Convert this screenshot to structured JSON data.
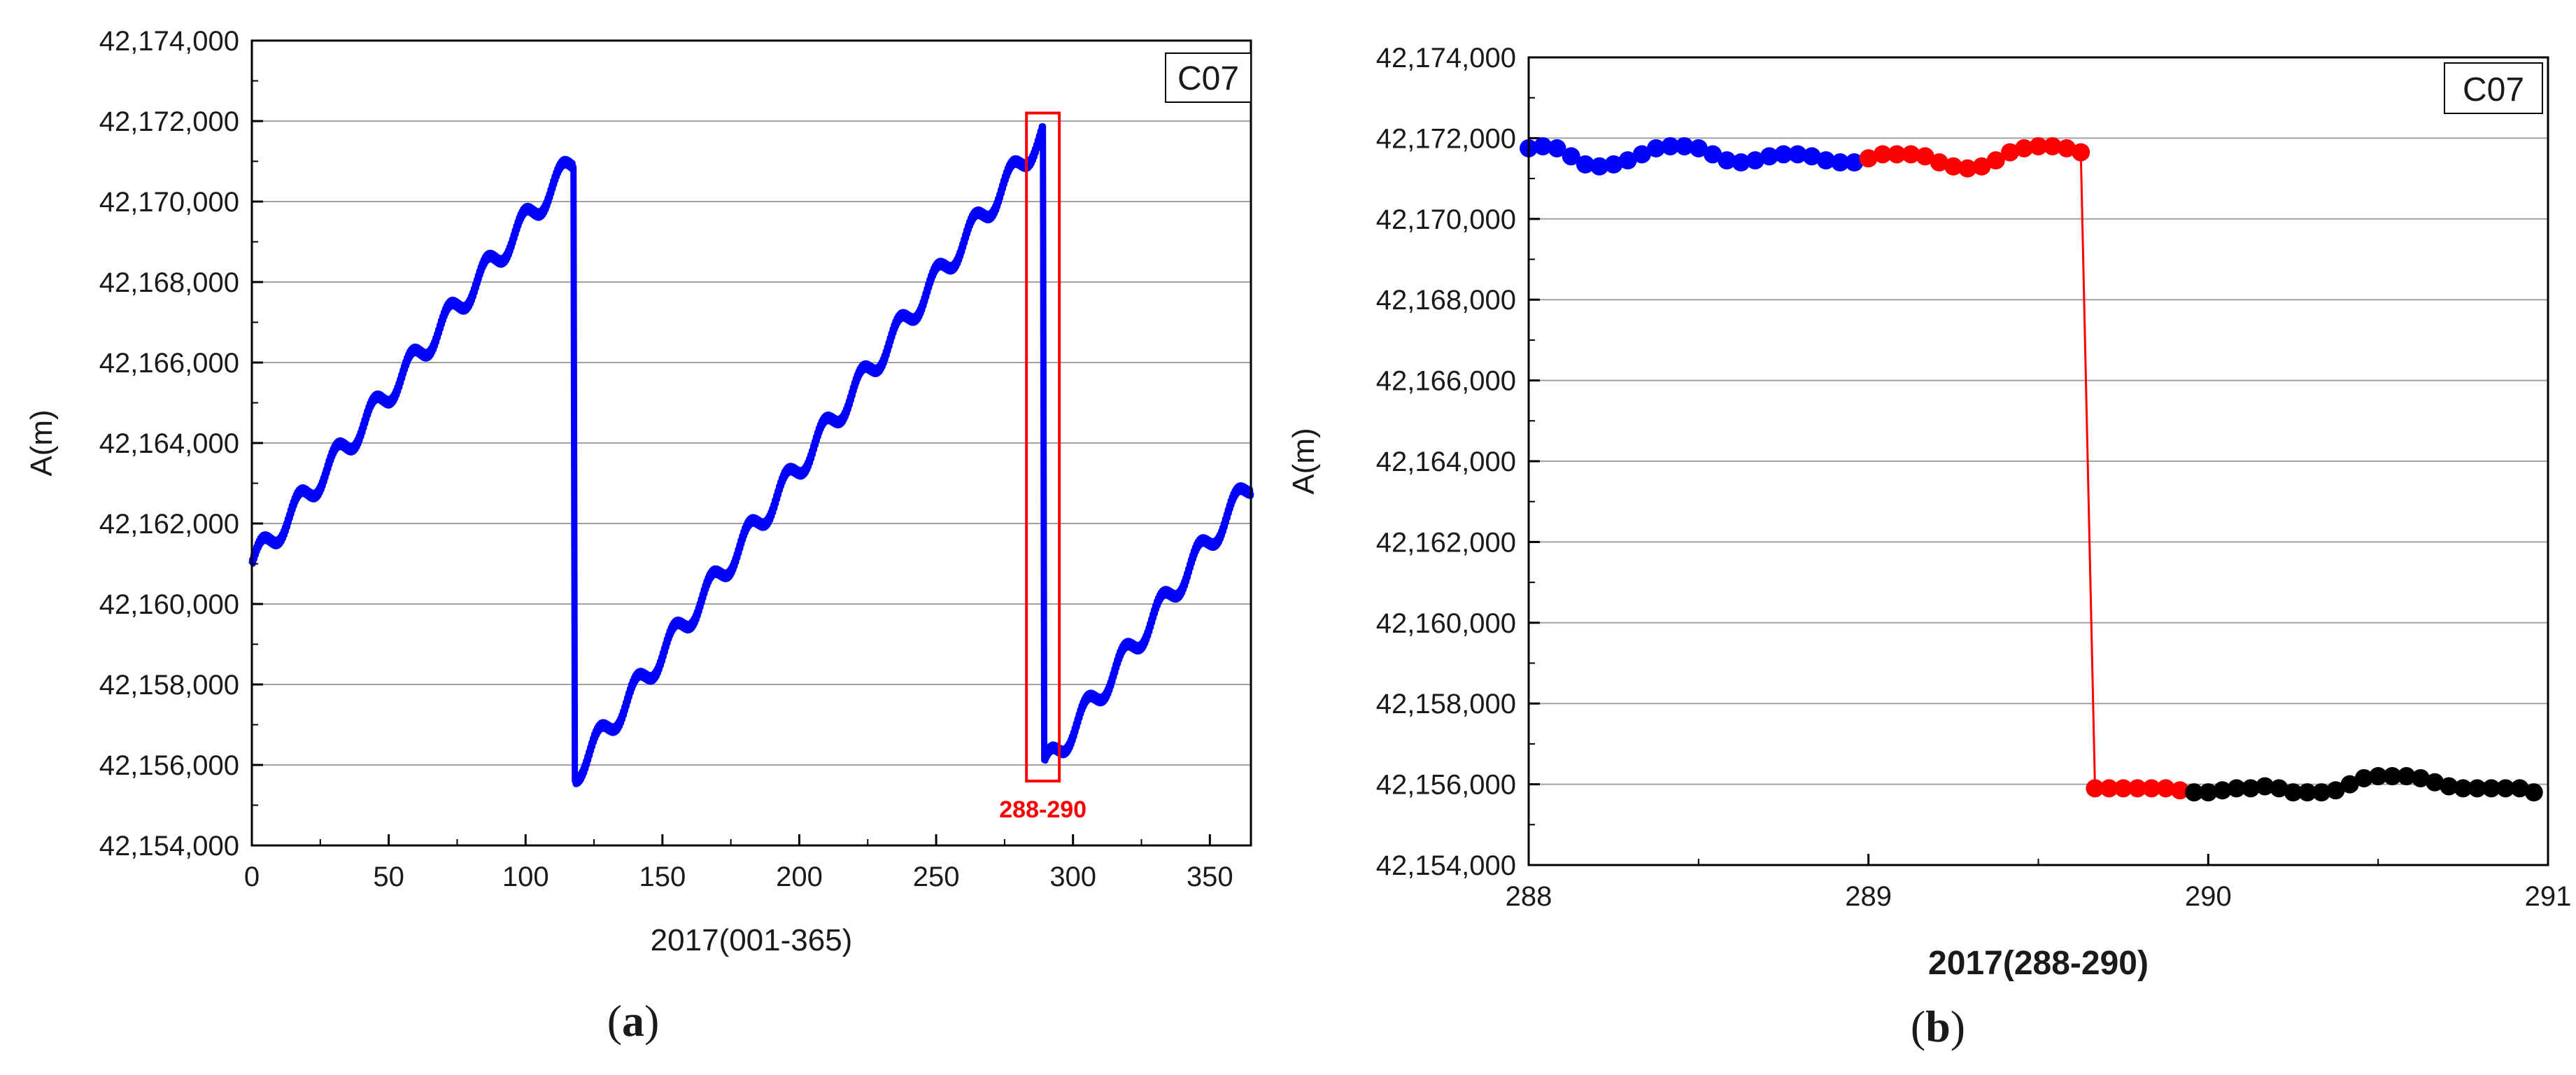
{
  "chart_data": [
    {
      "panel": "a",
      "type": "line",
      "caption": "a",
      "title": "",
      "tag": "C07",
      "xlabel": "2017(001-365)",
      "ylabel": "A(m)",
      "xlim": [
        0,
        365
      ],
      "ylim": [
        42154000,
        42174000
      ],
      "xticks": [
        0,
        50,
        100,
        150,
        200,
        250,
        300,
        350
      ],
      "yticks": [
        42154000,
        42156000,
        42158000,
        42160000,
        42162000,
        42164000,
        42166000,
        42168000,
        42170000,
        42172000,
        42174000
      ],
      "ytick_labels": [
        "42,154,000",
        "42,156,000",
        "42,158,000",
        "42,160,000",
        "42,162,000",
        "42,164,000",
        "42,166,000",
        "42,168,000",
        "42,170,000",
        "42,172,000",
        "42,174,000"
      ],
      "grid": "horizontal",
      "series": [
        {
          "color": "#0000ff",
          "x": [
            0,
            117.5,
            118,
            289,
            289.5,
            365
          ],
          "y": [
            42161000,
            42171000,
            42155800,
            42171700,
            42155900,
            42163000
          ],
          "oscillation_amplitude": 300,
          "oscillation_period_days": 13.7
        }
      ],
      "highlight": {
        "x_range": [
          283,
          295
        ],
        "y_range": [
          42155600,
          42172200
        ],
        "color": "#ff0000",
        "label": "288-290"
      }
    },
    {
      "panel": "b",
      "type": "scatter",
      "caption": "b",
      "title": "",
      "tag": "C07",
      "xlabel": "2017(288-290)",
      "ylabel": "A(m)",
      "xlim": [
        288,
        291
      ],
      "ylim": [
        42154000,
        42174000
      ],
      "xticks": [
        288,
        289,
        290,
        291
      ],
      "yticks": [
        42154000,
        42156000,
        42158000,
        42160000,
        42162000,
        42164000,
        42166000,
        42168000,
        42170000,
        42172000,
        42174000
      ],
      "ytick_labels": [
        "42,154,000",
        "42,156,000",
        "42,158,000",
        "42,160,000",
        "42,162,000",
        "42,164,000",
        "42,166,000",
        "42,168,000",
        "42,170,000",
        "42,172,000",
        "42,174,000"
      ],
      "grid": "horizontal",
      "series": [
        {
          "color": "#0000ff",
          "x": [
            288.0,
            288.0417,
            288.0833,
            288.125,
            288.1667,
            288.2083,
            288.25,
            288.2917,
            288.3333,
            288.375,
            288.4167,
            288.4583,
            288.5,
            288.5417,
            288.5833,
            288.625,
            288.6667,
            288.7083,
            288.75,
            288.7917,
            288.8333,
            288.875,
            288.9167,
            288.9583
          ],
          "y": [
            42171750,
            42171800,
            42171750,
            42171550,
            42171350,
            42171300,
            42171350,
            42171450,
            42171600,
            42171750,
            42171800,
            42171800,
            42171750,
            42171600,
            42171450,
            42171400,
            42171450,
            42171550,
            42171600,
            42171600,
            42171550,
            42171450,
            42171400,
            42171400
          ]
        },
        {
          "color": "#ff0000",
          "x": [
            289.0,
            289.0417,
            289.0833,
            289.125,
            289.1667,
            289.2083,
            289.25,
            289.2917,
            289.3333,
            289.375,
            289.4167,
            289.4583,
            289.5,
            289.5417,
            289.5833,
            289.625,
            289.6667,
            289.7083,
            289.75,
            289.7917,
            289.8333,
            289.875,
            289.9167
          ],
          "y": [
            42171500,
            42171600,
            42171600,
            42171600,
            42171550,
            42171400,
            42171300,
            42171250,
            42171300,
            42171450,
            42171650,
            42171750,
            42171800,
            42171800,
            42171750,
            42171650,
            42155900,
            42155900,
            42155900,
            42155900,
            42155900,
            42155900,
            42155850
          ]
        },
        {
          "color": "#000000",
          "x": [
            289.9583,
            290.0,
            290.0417,
            290.0833,
            290.125,
            290.1667,
            290.2083,
            290.25,
            290.2917,
            290.3333,
            290.375,
            290.4167,
            290.4583,
            290.5,
            290.5417,
            290.5833,
            290.625,
            290.6667,
            290.7083,
            290.75,
            290.7917,
            290.8333,
            290.875,
            290.9167,
            290.9583
          ],
          "y": [
            42155800,
            42155800,
            42155850,
            42155900,
            42155900,
            42155950,
            42155900,
            42155800,
            42155800,
            42155800,
            42155850,
            42156000,
            42156150,
            42156200,
            42156200,
            42156200,
            42156150,
            42156050,
            42155950,
            42155900,
            42155900,
            42155900,
            42155900,
            42155900,
            42155800
          ]
        }
      ]
    }
  ]
}
